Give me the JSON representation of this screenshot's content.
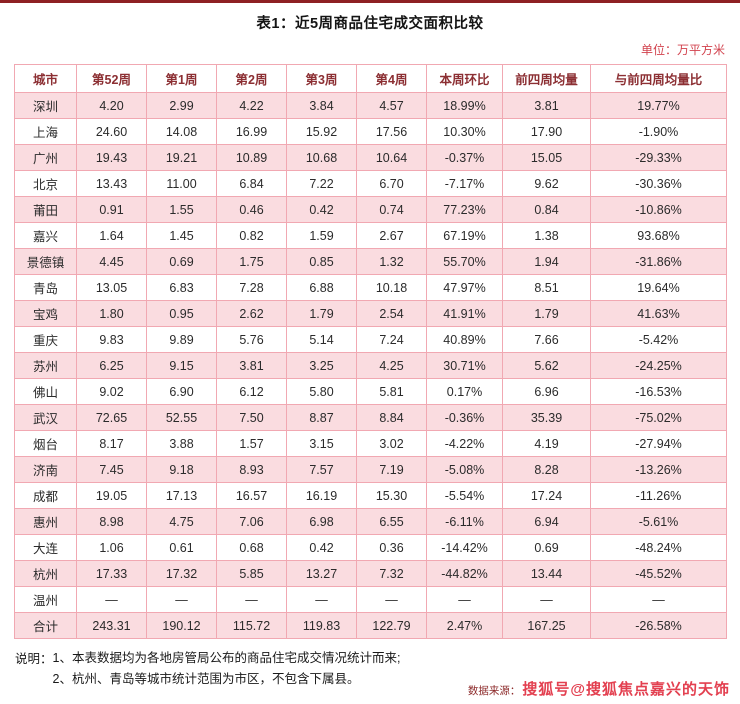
{
  "page": {
    "title": "表1：近5周商品住宅成交面积比较",
    "unit_label": "单位：万平方米",
    "notes_label": "说明：",
    "note_1": "1、本表数据均为各地房管局公布的商品住宅成交情况统计而来;",
    "note_2": "2、杭州、青岛等城市统计范围为市区，不包含下属县。",
    "source_label": "数据来源：",
    "watermark": "搜狐号@搜狐焦点嘉兴的天饰"
  },
  "colors": {
    "accent_dark_red": "#8e2023",
    "header_text": "#8c2f33",
    "row_pink": "#fadce0",
    "border_pink": "#f1a8b2",
    "positive_red": "#e0394a",
    "negative_green": "#2aa05c"
  },
  "chart_data": {
    "type": "table",
    "title": "表1：近5周商品住宅成交面积比较",
    "unit": "万平方米",
    "percent_columns": [
      6,
      8
    ],
    "columns": [
      "城市",
      "第52周",
      "第1周",
      "第2周",
      "第3周",
      "第4周",
      "本周环比",
      "前四周均量",
      "与前四周均量比"
    ],
    "rows": [
      [
        "深圳",
        "4.20",
        "2.99",
        "4.22",
        "3.84",
        "4.57",
        "18.99%",
        "3.81",
        "19.77%"
      ],
      [
        "上海",
        "24.60",
        "14.08",
        "16.99",
        "15.92",
        "17.56",
        "10.30%",
        "17.90",
        "-1.90%"
      ],
      [
        "广州",
        "19.43",
        "19.21",
        "10.89",
        "10.68",
        "10.64",
        "-0.37%",
        "15.05",
        "-29.33%"
      ],
      [
        "北京",
        "13.43",
        "11.00",
        "6.84",
        "7.22",
        "6.70",
        "-7.17%",
        "9.62",
        "-30.36%"
      ],
      [
        "莆田",
        "0.91",
        "1.55",
        "0.46",
        "0.42",
        "0.74",
        "77.23%",
        "0.84",
        "-10.86%"
      ],
      [
        "嘉兴",
        "1.64",
        "1.45",
        "0.82",
        "1.59",
        "2.67",
        "67.19%",
        "1.38",
        "93.68%"
      ],
      [
        "景德镇",
        "4.45",
        "0.69",
        "1.75",
        "0.85",
        "1.32",
        "55.70%",
        "1.94",
        "-31.86%"
      ],
      [
        "青岛",
        "13.05",
        "6.83",
        "7.28",
        "6.88",
        "10.18",
        "47.97%",
        "8.51",
        "19.64%"
      ],
      [
        "宝鸡",
        "1.80",
        "0.95",
        "2.62",
        "1.79",
        "2.54",
        "41.91%",
        "1.79",
        "41.63%"
      ],
      [
        "重庆",
        "9.83",
        "9.89",
        "5.76",
        "5.14",
        "7.24",
        "40.89%",
        "7.66",
        "-5.42%"
      ],
      [
        "苏州",
        "6.25",
        "9.15",
        "3.81",
        "3.25",
        "4.25",
        "30.71%",
        "5.62",
        "-24.25%"
      ],
      [
        "佛山",
        "9.02",
        "6.90",
        "6.12",
        "5.80",
        "5.81",
        "0.17%",
        "6.96",
        "-16.53%"
      ],
      [
        "武汉",
        "72.65",
        "52.55",
        "7.50",
        "8.87",
        "8.84",
        "-0.36%",
        "35.39",
        "-75.02%"
      ],
      [
        "烟台",
        "8.17",
        "3.88",
        "1.57",
        "3.15",
        "3.02",
        "-4.22%",
        "4.19",
        "-27.94%"
      ],
      [
        "济南",
        "7.45",
        "9.18",
        "8.93",
        "7.57",
        "7.19",
        "-5.08%",
        "8.28",
        "-13.26%"
      ],
      [
        "成都",
        "19.05",
        "17.13",
        "16.57",
        "16.19",
        "15.30",
        "-5.54%",
        "17.24",
        "-11.26%"
      ],
      [
        "惠州",
        "8.98",
        "4.75",
        "7.06",
        "6.98",
        "6.55",
        "-6.11%",
        "6.94",
        "-5.61%"
      ],
      [
        "大连",
        "1.06",
        "0.61",
        "0.68",
        "0.42",
        "0.36",
        "-14.42%",
        "0.69",
        "-48.24%"
      ],
      [
        "杭州",
        "17.33",
        "17.32",
        "5.85",
        "13.27",
        "7.32",
        "-44.82%",
        "13.44",
        "-45.52%"
      ],
      [
        "温州",
        "—",
        "—",
        "—",
        "—",
        "—",
        "—",
        "—",
        "—"
      ],
      [
        "合计",
        "243.31",
        "190.12",
        "115.72",
        "119.83",
        "122.79",
        "2.47%",
        "167.25",
        "-26.58%"
      ]
    ]
  }
}
